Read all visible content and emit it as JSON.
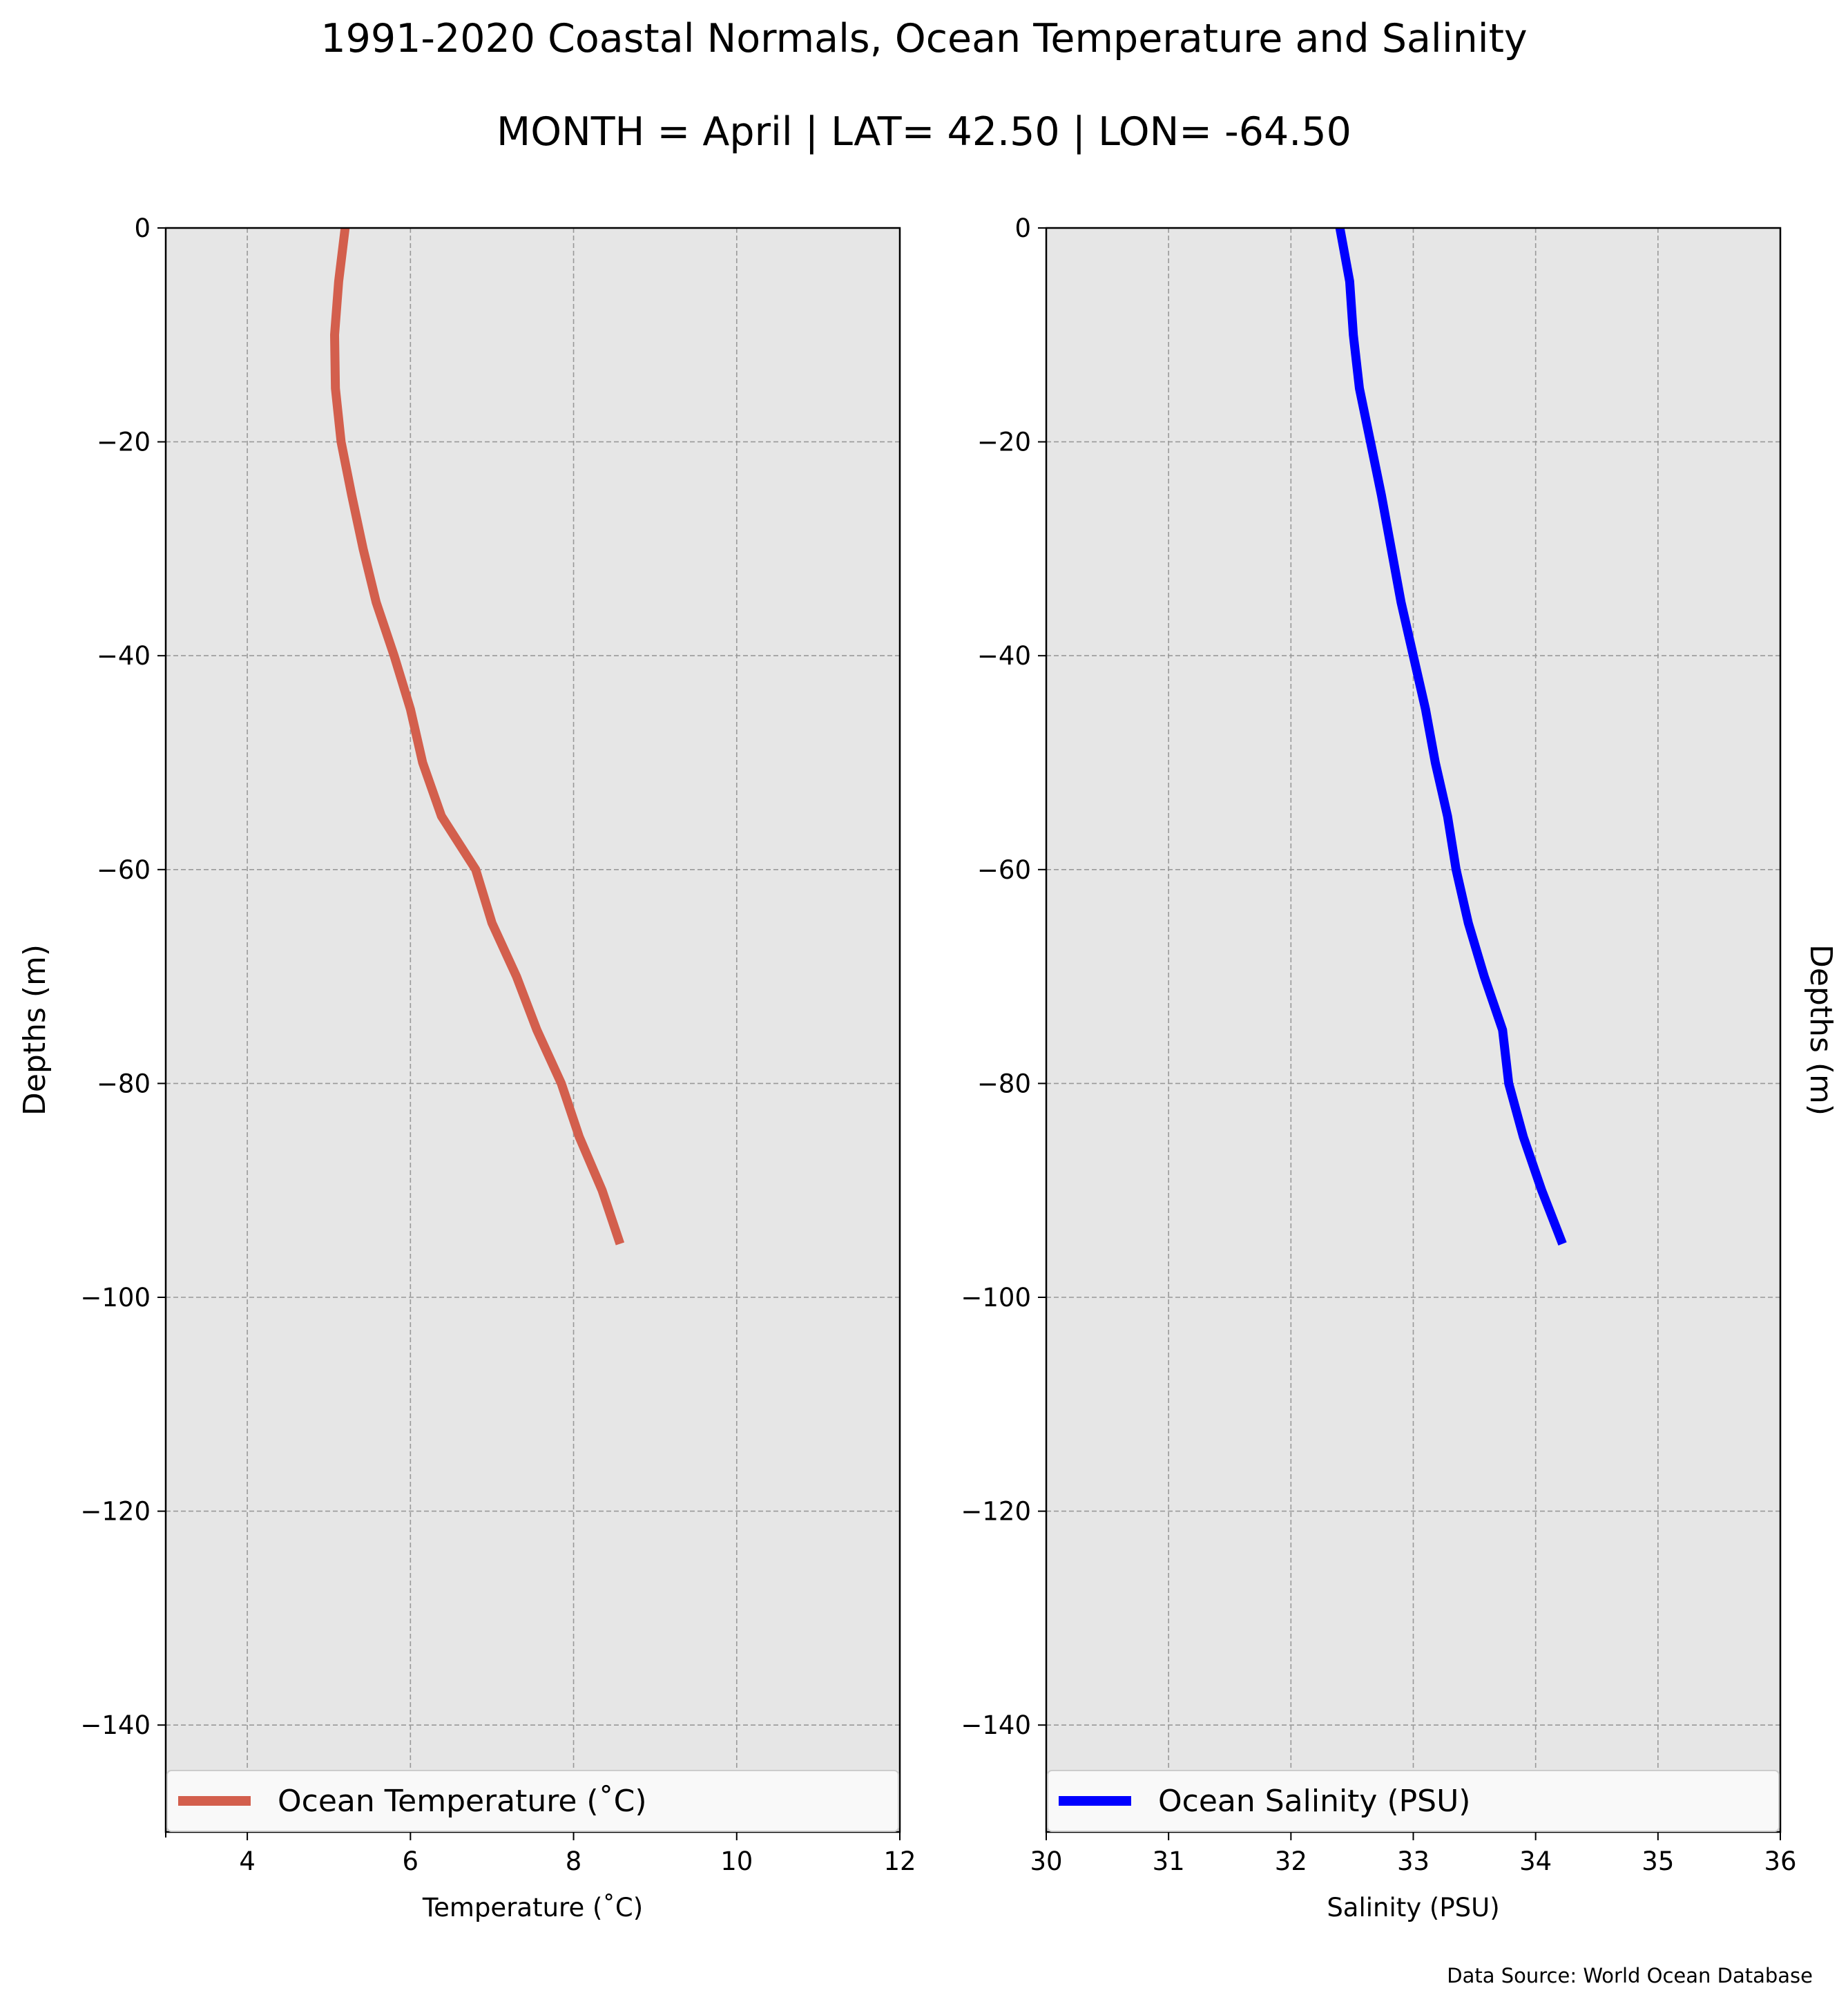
{
  "title_line1": "1991-2020 Coastal Normals, Ocean Temperature and Salinity",
  "title_line2": "MONTH = April | LAT= 42.50 | LON= -64.50",
  "source": "Data Source: World Ocean Database",
  "chart_data": [
    {
      "type": "line",
      "xlabel": "Temperature (˚C)",
      "ylabel": "Depths (m)",
      "xlim": [
        3,
        12
      ],
      "ylim": [
        -150,
        0
      ],
      "xticks": [
        4,
        6,
        8,
        10,
        12
      ],
      "yticks": [
        0,
        -20,
        -40,
        -60,
        -80,
        -100,
        -120,
        -140
      ],
      "ytick_labels": [
        "0",
        "−20",
        "−40",
        "−60",
        "−80",
        "−100",
        "−120",
        "−140"
      ],
      "grid": true,
      "legend_position": "bottom",
      "series": [
        {
          "name": "Ocean Temperature (˚C)",
          "color": "#d35f4d",
          "x": [
            5.2,
            5.12,
            5.07,
            5.08,
            5.15,
            5.28,
            5.42,
            5.58,
            5.8,
            6.0,
            6.15,
            6.38,
            6.8,
            7.0,
            7.3,
            7.55,
            7.85,
            8.07,
            8.35,
            8.57
          ],
          "y": [
            0,
            -5,
            -10,
            -15,
            -20,
            -25,
            -30,
            -35,
            -40,
            -45,
            -50,
            -55,
            -60,
            -65,
            -70,
            -75,
            -80,
            -85,
            -90,
            -95
          ]
        }
      ]
    },
    {
      "type": "line",
      "xlabel": "Salinity (PSU)",
      "ylabel": "Depths (m)",
      "xlim": [
        30,
        36
      ],
      "ylim": [
        -150,
        0
      ],
      "xticks": [
        30,
        31,
        32,
        33,
        34,
        35,
        36
      ],
      "yticks": [
        0,
        -20,
        -40,
        -60,
        -80,
        -100,
        -120,
        -140
      ],
      "ytick_labels": [
        "0",
        "−20",
        "−40",
        "−60",
        "−80",
        "−100",
        "−120",
        "−140"
      ],
      "grid": true,
      "legend_position": "bottom",
      "series": [
        {
          "name": "Ocean Salinity (PSU)",
          "color": "#0000ff",
          "x": [
            32.4,
            32.48,
            32.51,
            32.56,
            32.65,
            32.74,
            32.82,
            32.9,
            33.0,
            33.1,
            33.18,
            33.28,
            33.35,
            33.45,
            33.58,
            33.73,
            33.78,
            33.9,
            34.05,
            34.22
          ],
          "y": [
            0,
            -5,
            -10,
            -15,
            -20,
            -25,
            -30,
            -35,
            -40,
            -45,
            -50,
            -55,
            -60,
            -65,
            -70,
            -75,
            -80,
            -85,
            -90,
            -95
          ]
        }
      ]
    }
  ]
}
